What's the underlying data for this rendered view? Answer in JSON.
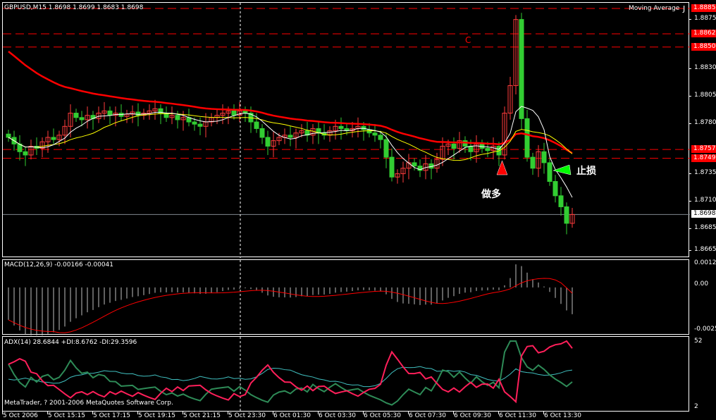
{
  "header": {
    "symbol_info": "GBPUSD,M15  1.8698 1.8699 1.8683 1.8698",
    "indicator_name": "Moving Average",
    "indicator_marker": "J"
  },
  "price_axis": {
    "ticks": [
      "1.8875",
      "1.8830",
      "1.8805",
      "1.8780",
      "1.8735",
      "1.8710",
      "1.8685",
      "1.8665"
    ],
    "level_labels": [
      "1.8885",
      "1.8862",
      "1.8850",
      "1.8757",
      "1.8749"
    ],
    "current_price": "1.8698"
  },
  "annotations": {
    "c_label": "C",
    "buy_label": "做多",
    "stop_loss_label": "止损"
  },
  "macd": {
    "title": "MACD(12,26,9) -0.00166 -0.00041",
    "axis": [
      "0.00126",
      "0.00",
      "-0.0025"
    ]
  },
  "adx": {
    "title": "ADX(14) 28.6844 +DI:8.6762 -DI:29.3596",
    "axis": [
      "52",
      "2"
    ]
  },
  "copyright": "MetaTrader, ? 2001-2006 MetaQuotes Software Corp.",
  "time_axis": [
    "5 Oct 2006",
    "5 Oct 15:15",
    "5 Oct 17:15",
    "5 Oct 19:15",
    "5 Oct 21:15",
    "5 Oct 23:30",
    "6 Oct 01:30",
    "6 Oct 03:30",
    "6 Oct 05:30",
    "6 Oct 07:30",
    "6 Oct 09:30",
    "6 Oct 11:30",
    "6 Oct 13:30"
  ],
  "colors": {
    "bull": "#ff3c3c",
    "bear": "#32cd32",
    "level": "#ff0000",
    "ma_fast": "#ffffff",
    "ma_mid": "#ffff00",
    "ma_slow": "#ff0000",
    "plus_di": "#2e8b57",
    "minus_di": "#ff1f5a",
    "adx": "#40c0c0"
  },
  "chart_data": {
    "type": "candlestick",
    "symbol": "GBPUSD",
    "timeframe": "M15",
    "ylim": [
      1.8665,
      1.8885
    ],
    "levels": [
      1.8885,
      1.8862,
      1.885,
      1.8757,
      1.8749
    ],
    "closes": [
      1.8768,
      1.8762,
      1.8755,
      1.8752,
      1.876,
      1.8758,
      1.8764,
      1.8768,
      1.8766,
      1.877,
      1.8778,
      1.879,
      1.8786,
      1.8784,
      1.8788,
      1.8785,
      1.879,
      1.8792,
      1.8788,
      1.879,
      1.8787,
      1.8789,
      1.8791,
      1.8788,
      1.879,
      1.8792,
      1.8794,
      1.879,
      1.8786,
      1.8788,
      1.8784,
      1.8786,
      1.8782,
      1.878,
      1.8778,
      1.8782,
      1.8786,
      1.8788,
      1.879,
      1.8792,
      1.8788,
      1.8792,
      1.879,
      1.8782,
      1.8776,
      1.8768,
      1.876,
      1.8765,
      1.8768,
      1.877,
      1.8768,
      1.8772,
      1.8774,
      1.877,
      1.8776,
      1.8772,
      1.877,
      1.8774,
      1.8778,
      1.8776,
      1.8774,
      1.8776,
      1.8778,
      1.8775,
      1.8772,
      1.877,
      1.8766,
      1.875,
      1.8732,
      1.8735,
      1.874,
      1.8745,
      1.8742,
      1.8738,
      1.8744,
      1.874,
      1.8748,
      1.876,
      1.8762,
      1.8758,
      1.8765,
      1.876,
      1.8755,
      1.8762,
      1.8758,
      1.8756,
      1.876,
      1.8752,
      1.879,
      1.8815,
      1.8875,
      1.8785,
      1.875,
      1.874,
      1.8755,
      1.8745,
      1.8728,
      1.8715,
      1.8705,
      1.869,
      1.8698
    ],
    "macd_range": [
      -0.0025,
      0.00126
    ],
    "adx_range": [
      2,
      52
    ]
  }
}
